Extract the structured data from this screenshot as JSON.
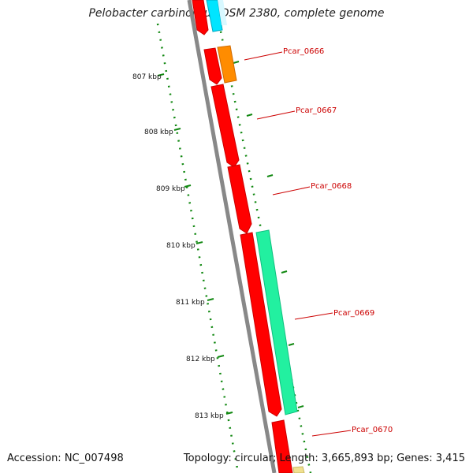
{
  "title": "Pelobacter carbinolicus DSM 2380, complete genome",
  "footer": {
    "accession": "Accession: NC_007498",
    "summary": "Topology: circular; Length: 3,665,893 bp; Genes: 3,415"
  },
  "ticks": [
    {
      "label": "807 kbp"
    },
    {
      "label": "808 kbp"
    },
    {
      "label": "809 kbp"
    },
    {
      "label": "810 kbp"
    },
    {
      "label": "811 kbp"
    },
    {
      "label": "812 kbp"
    },
    {
      "label": "813 kbp"
    }
  ],
  "genes": [
    {
      "label": "Pcar_0666"
    },
    {
      "label": "Pcar_0667"
    },
    {
      "label": "Pcar_0668"
    },
    {
      "label": "Pcar_0669"
    },
    {
      "label": "Pcar_0670"
    }
  ],
  "colors": {
    "backbone": "#888888",
    "forward_gene": "#ff0000",
    "orange_gene": "#ff8c00",
    "cyan_gene": "#00e5ff",
    "teal_gene": "#22f0a0",
    "yellow_gene": "#f0e090",
    "tick_dots": "#118811",
    "label_text": "#cc0000"
  }
}
